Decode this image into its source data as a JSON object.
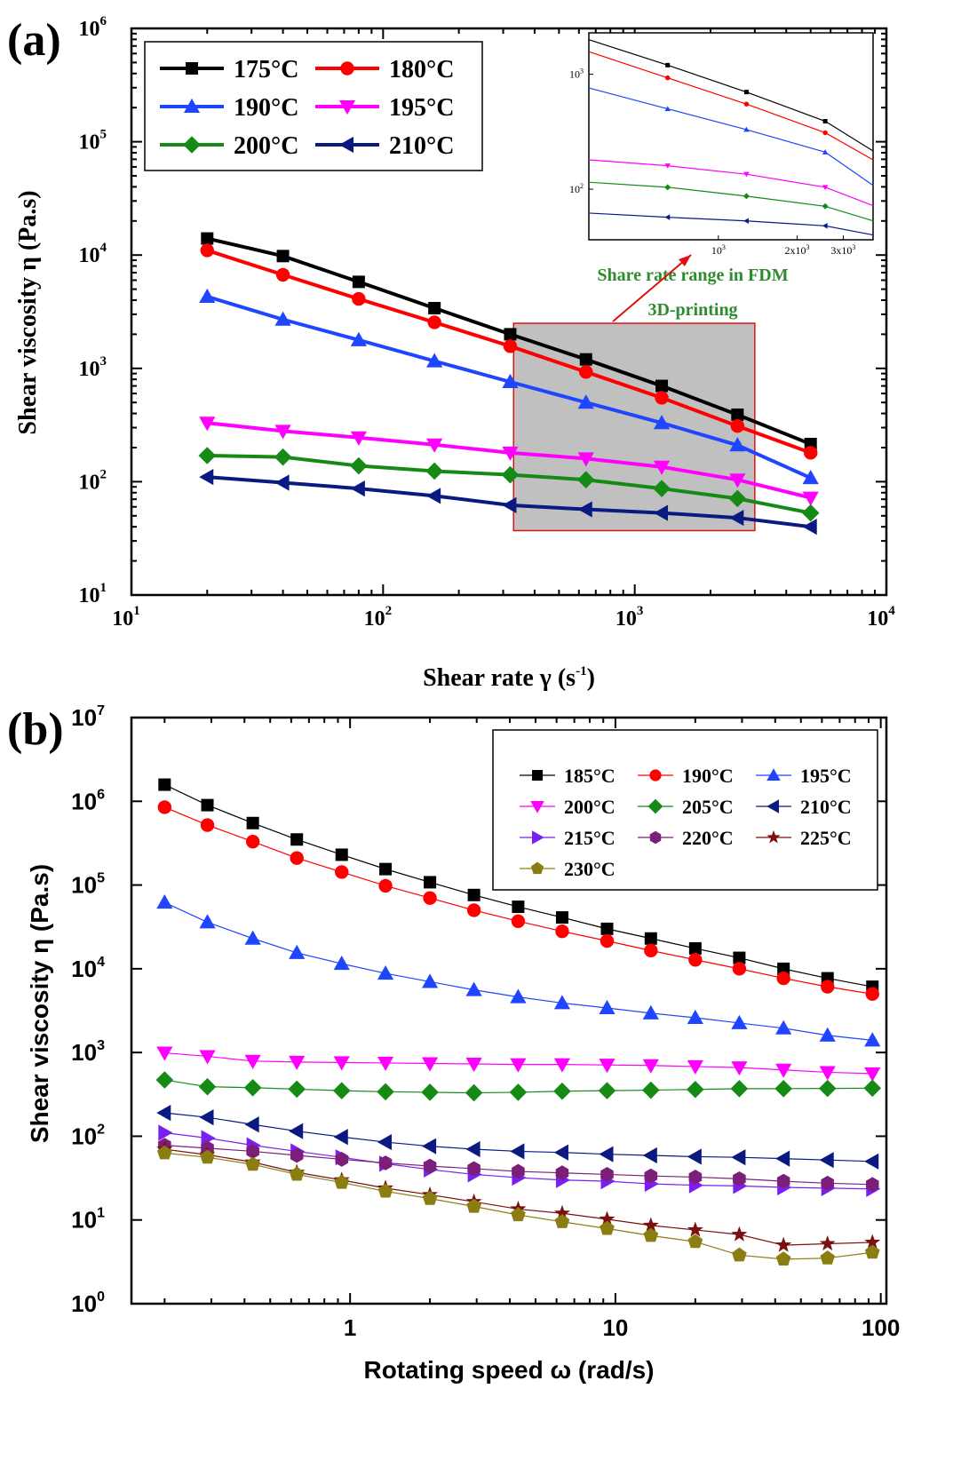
{
  "panel_a": {
    "label": "(a)",
    "chart_data": {
      "type": "line",
      "xscale": "log",
      "yscale": "log",
      "xlabel": "Shear rate γ (s-1)",
      "ylabel": "Shear viscosity η (Pa.s)",
      "xlim": [
        10,
        10000
      ],
      "ylim": [
        10,
        1000000
      ],
      "x_ticks": [
        "10^1",
        "10^2",
        "10^3",
        "10^4"
      ],
      "y_ticks": [
        "10^1",
        "10^2",
        "10^3",
        "10^4",
        "10^5",
        "10^6"
      ],
      "x": [
        20,
        40,
        80,
        160,
        320,
        640,
        1280,
        2560,
        5000
      ],
      "series": [
        {
          "name": "175°C",
          "color": "#000000",
          "marker": "square",
          "values": [
            14000,
            9800,
            5800,
            3400,
            2000,
            1200,
            700,
            390,
            215
          ]
        },
        {
          "name": "180°C",
          "color": "#ff0000",
          "marker": "circle",
          "values": [
            11000,
            6700,
            4100,
            2550,
            1570,
            930,
            550,
            310,
            180
          ]
        },
        {
          "name": "190°C",
          "color": "#1f45ff",
          "marker": "triangle-up",
          "values": [
            4300,
            2700,
            1780,
            1160,
            760,
            500,
            330,
            210,
            108
          ]
        },
        {
          "name": "195°C",
          "color": "#ff00ff",
          "marker": "triangle-down",
          "values": [
            330,
            280,
            245,
            212,
            180,
            160,
            135,
            104,
            72
          ]
        },
        {
          "name": "200°C",
          "color": "#158a15",
          "marker": "diamond",
          "values": [
            170,
            165,
            138,
            124,
            115,
            104,
            87,
            71,
            53
          ]
        },
        {
          "name": "210°C",
          "color": "#0a1a80",
          "marker": "triangle-left",
          "values": [
            110,
            98,
            87,
            75,
            62,
            57,
            53,
            48,
            40
          ]
        }
      ],
      "shaded_range": {
        "x": [
          330,
          3000
        ],
        "y": [
          37,
          2500
        ]
      },
      "annotation": [
        "Share rate range in FDM",
        "3D-printing"
      ],
      "inset": {
        "x_ticks": [
          "10^3",
          "2x10^3",
          "3x10^3"
        ],
        "y_ticks": [
          "10^2",
          "10^3"
        ]
      }
    }
  },
  "panel_b": {
    "label": "(b)",
    "chart_data": {
      "type": "line",
      "xscale": "log",
      "yscale": "log",
      "xlabel": "Rotating speed ω (rad/s)",
      "ylabel": "Shear viscosity η (Pa.s)",
      "xlim": [
        0.15,
        105
      ],
      "ylim": [
        1,
        10000000
      ],
      "x_ticks": [
        "1",
        "10",
        "100"
      ],
      "y_ticks": [
        "10^0",
        "10^1",
        "10^2",
        "10^3",
        "10^4",
        "10^5",
        "10^6",
        "10^7"
      ],
      "x": [
        0.2,
        0.29,
        0.43,
        0.63,
        0.93,
        1.36,
        2.0,
        2.93,
        4.3,
        6.3,
        9.3,
        13.6,
        20,
        29.3,
        43,
        63,
        93
      ],
      "series": [
        {
          "name": "185°C",
          "color": "#000000",
          "marker": "square",
          "values": [
            1580000,
            900000,
            550000,
            350000,
            230000,
            155000,
            108000,
            76000,
            55000,
            41000,
            30000,
            23000,
            17500,
            13500,
            10000,
            7700,
            6100
          ]
        },
        {
          "name": "190°C",
          "color": "#ff0000",
          "marker": "circle",
          "values": [
            850000,
            520000,
            330000,
            210000,
            143000,
            98000,
            70000,
            50000,
            37000,
            28000,
            21500,
            16500,
            12800,
            10000,
            7700,
            6100,
            5000
          ]
        },
        {
          "name": "195°C",
          "color": "#1f45ff",
          "marker": "triangle-up",
          "values": [
            62000,
            36000,
            23000,
            15500,
            11500,
            8800,
            7000,
            5600,
            4600,
            3900,
            3400,
            2950,
            2600,
            2250,
            1950,
            1600,
            1400
          ]
        },
        {
          "name": "200°C",
          "color": "#ff00ff",
          "marker": "triangle-down",
          "values": [
            990,
            900,
            790,
            770,
            760,
            750,
            740,
            730,
            720,
            720,
            710,
            700,
            680,
            660,
            620,
            580,
            560
          ]
        },
        {
          "name": "205°C",
          "color": "#158a15",
          "marker": "diamond",
          "values": [
            470,
            390,
            380,
            365,
            350,
            340,
            335,
            330,
            335,
            345,
            350,
            355,
            362,
            370,
            370,
            372,
            375
          ]
        },
        {
          "name": "210°C",
          "color": "#0a1a80",
          "marker": "triangle-left",
          "values": [
            190,
            168,
            138,
            115,
            98,
            85,
            76,
            70,
            66,
            64,
            61,
            59,
            57,
            56,
            54,
            52,
            50
          ]
        },
        {
          "name": "215°C",
          "color": "#7a1ff0",
          "marker": "triangle-right",
          "values": [
            110,
            95,
            78,
            66,
            56,
            47,
            40,
            35,
            32,
            30,
            29,
            27,
            26,
            25.5,
            24.5,
            24,
            23.5
          ]
        },
        {
          "name": "220°C",
          "color": "#7b1f7b",
          "marker": "hexagon",
          "values": [
            78,
            72,
            66,
            59,
            53,
            48,
            44,
            41,
            38,
            36.5,
            35,
            33.5,
            32.5,
            31,
            29,
            27.5,
            26.5
          ]
        },
        {
          "name": "225°C",
          "color": "#7a1010",
          "marker": "star",
          "values": [
            70,
            60,
            49,
            37,
            30,
            24,
            20,
            16.5,
            13.5,
            12,
            10.2,
            8.6,
            7.6,
            6.7,
            5.0,
            5.2,
            5.4
          ]
        },
        {
          "name": "230°C",
          "color": "#8a7d12",
          "marker": "pentagon",
          "values": [
            63,
            56,
            46,
            35,
            28,
            22,
            18,
            14.5,
            11.5,
            9.5,
            7.9,
            6.5,
            5.5,
            3.8,
            3.4,
            3.5,
            4.1
          ]
        }
      ]
    }
  }
}
